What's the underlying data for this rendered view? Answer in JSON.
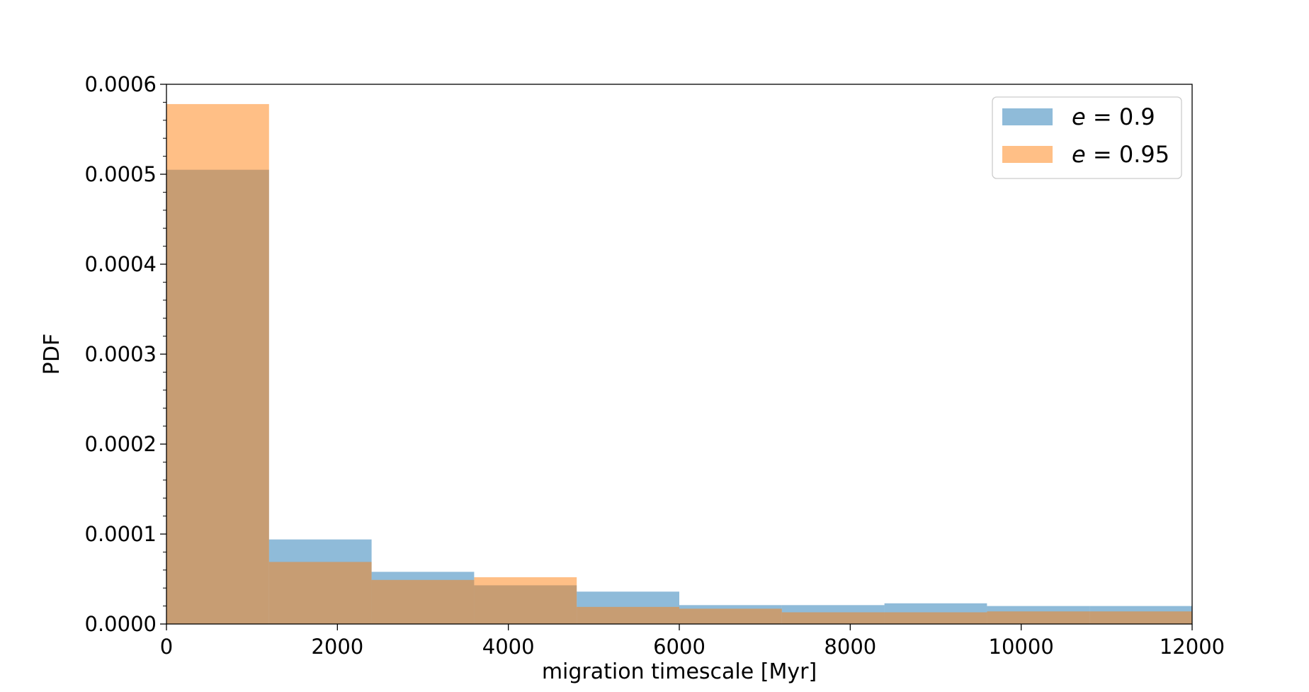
{
  "chart_data": {
    "type": "bar",
    "xlabel": "migration timescale [Myr]",
    "ylabel": "PDF",
    "xlim": [
      0,
      12000
    ],
    "ylim": [
      0,
      0.0006
    ],
    "xticks": [
      0,
      2000,
      4000,
      6000,
      8000,
      10000,
      12000
    ],
    "yticks": [
      0.0,
      0.0001,
      0.0002,
      0.0003,
      0.0004,
      0.0005,
      0.0006
    ],
    "xtick_labels": [
      "0",
      "2000",
      "4000",
      "6000",
      "8000",
      "10000",
      "12000"
    ],
    "ytick_labels": [
      "0.0000",
      "0.0001",
      "0.0002",
      "0.0003",
      "0.0004",
      "0.0005",
      "0.0006"
    ],
    "bin_edges": [
      0,
      1200,
      2400,
      3600,
      4800,
      6000,
      7200,
      8400,
      9600,
      10800,
      12000
    ],
    "series": [
      {
        "name": "e = 0.9",
        "legend_var": "e",
        "legend_value": "= 0.9",
        "color": "#1f77b4",
        "opacity": 0.5,
        "values": [
          0.000505,
          9.4e-05,
          5.8e-05,
          4.3e-05,
          3.6e-05,
          2.1e-05,
          2.1e-05,
          2.3e-05,
          2e-05,
          2e-05
        ]
      },
      {
        "name": "e = 0.95",
        "legend_var": "e",
        "legend_value": "= 0.95",
        "color": "#ff7f0e",
        "opacity": 0.5,
        "values": [
          0.000578,
          6.9e-05,
          4.9e-05,
          5.2e-05,
          1.9e-05,
          1.7e-05,
          1.3e-05,
          1.3e-05,
          1.4e-05,
          1.4e-05
        ]
      }
    ],
    "legend_position": "top-right",
    "grid": false
  }
}
